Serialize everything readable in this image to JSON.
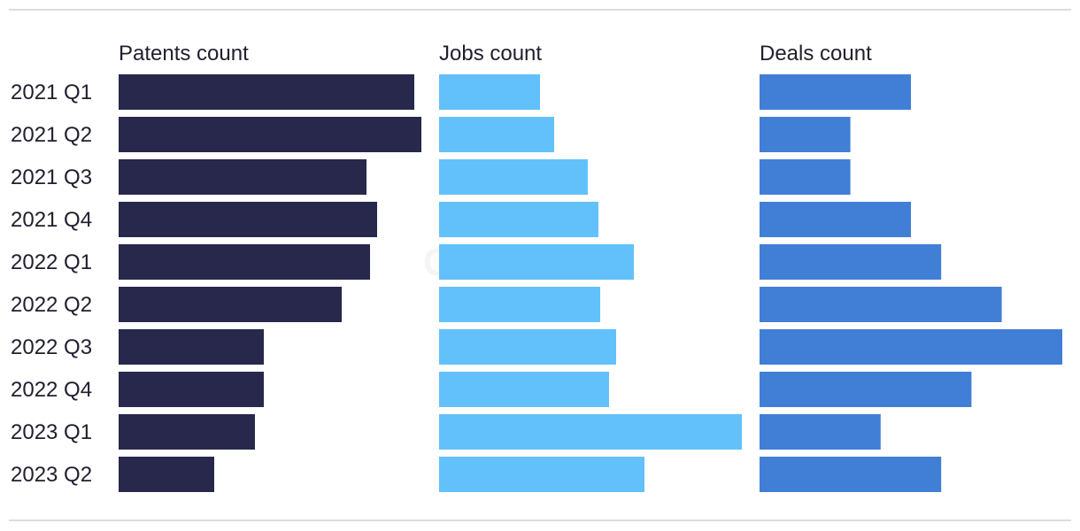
{
  "watermark": "GlobalData",
  "colors": {
    "patents": "#27284c",
    "jobs": "#62c1fa",
    "deals": "#417ed6",
    "text": "#1f1f2e",
    "rule": "#dcdcdc"
  },
  "chart_data": {
    "type": "bar",
    "orientation": "horizontal",
    "categories": [
      "2021 Q1",
      "2021 Q2",
      "2021 Q3",
      "2021 Q4",
      "2022 Q1",
      "2022 Q2",
      "2022 Q3",
      "2022 Q4",
      "2023 Q1",
      "2023 Q2"
    ],
    "series": [
      {
        "name": "Patents count",
        "values": [
          167,
          171,
          140,
          146,
          142,
          126,
          82,
          82,
          77,
          54
        ]
      },
      {
        "name": "Jobs count",
        "values": [
          57,
          65,
          84,
          90,
          110,
          91,
          100,
          96,
          171,
          116
        ]
      },
      {
        "name": "Deals count",
        "values": [
          10,
          6,
          6,
          10,
          12,
          16,
          20,
          14,
          8,
          12
        ]
      }
    ],
    "grid": false,
    "legend": "none"
  }
}
